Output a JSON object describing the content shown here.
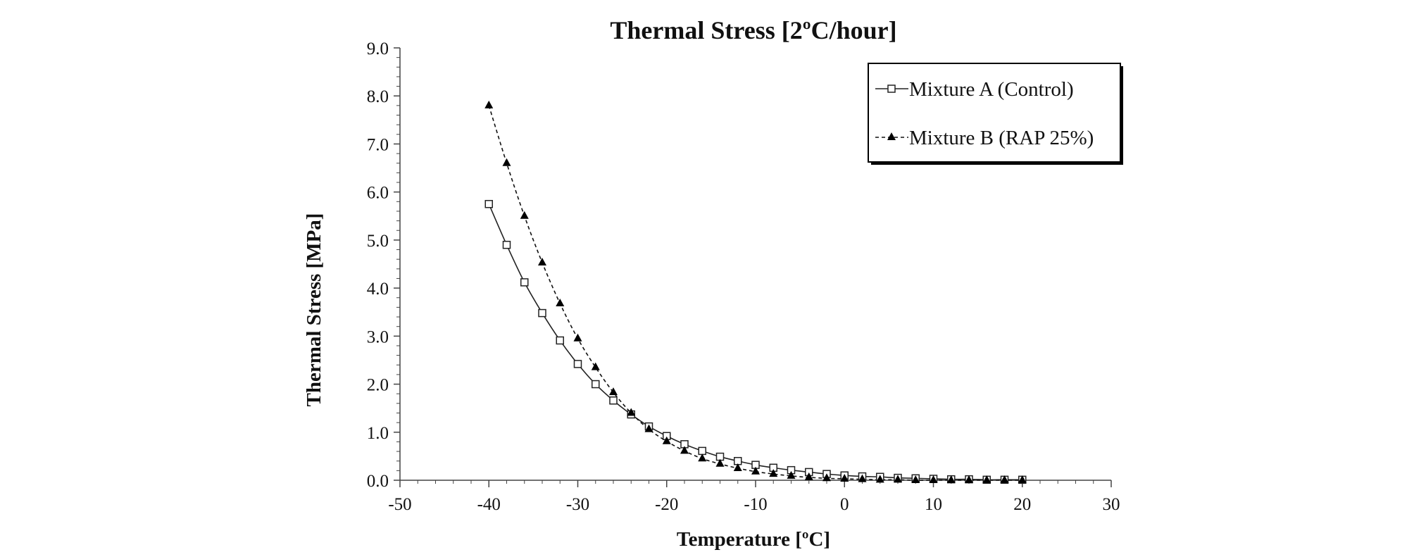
{
  "chart_data": {
    "type": "scatter",
    "title": "Thermal Stress [2ºC/hour]",
    "xlabel": "Temperature [ºC]",
    "ylabel": "Thermal Stress [MPa]",
    "xlim": [
      -50,
      30
    ],
    "ylim": [
      0,
      9
    ],
    "xticks": [
      -50,
      -40,
      -30,
      -20,
      -10,
      0,
      10,
      20,
      30
    ],
    "xtick_labels": [
      "-50",
      "-40",
      "-30",
      "-20",
      "-10",
      "0",
      "10",
      "20",
      "30"
    ],
    "yticks": [
      0,
      1,
      2,
      3,
      4,
      5,
      6,
      7,
      8,
      9
    ],
    "ytick_labels": [
      "0.0",
      "1.0",
      "2.0",
      "3.0",
      "4.0",
      "5.0",
      "6.0",
      "7.0",
      "8.0",
      "9.0"
    ],
    "grid": false,
    "legend_position": "top-right",
    "series": [
      {
        "name": "Mixture A (Control)",
        "marker": "open-square",
        "line": "solid",
        "color": "#222222",
        "x": [
          -40,
          -38,
          -36,
          -34,
          -32,
          -30,
          -28,
          -26,
          -24,
          -22,
          -20,
          -18,
          -16,
          -14,
          -12,
          -10,
          -8,
          -6,
          -4,
          -2,
          0,
          2,
          4,
          6,
          8,
          10,
          12,
          14,
          16,
          18,
          20
        ],
        "y": [
          5.75,
          4.9,
          4.12,
          3.48,
          2.91,
          2.42,
          2.0,
          1.66,
          1.37,
          1.12,
          0.92,
          0.75,
          0.61,
          0.49,
          0.4,
          0.32,
          0.26,
          0.21,
          0.17,
          0.13,
          0.1,
          0.08,
          0.07,
          0.05,
          0.04,
          0.03,
          0.02,
          0.02,
          0.01,
          0.01,
          0.01
        ]
      },
      {
        "name": "Mixture B (RAP 25%)",
        "marker": "filled-triangle",
        "line": "dashed",
        "color": "#111111",
        "x": [
          -40,
          -38,
          -36,
          -34,
          -32,
          -30,
          -28,
          -26,
          -24,
          -22,
          -20,
          -18,
          -16,
          -14,
          -12,
          -10,
          -8,
          -6,
          -4,
          -2,
          0,
          2,
          4,
          6,
          8,
          10,
          12,
          14,
          16,
          18,
          20
        ],
        "y": [
          7.8,
          6.6,
          5.5,
          4.53,
          3.68,
          2.95,
          2.35,
          1.83,
          1.4,
          1.06,
          0.81,
          0.61,
          0.45,
          0.34,
          0.25,
          0.18,
          0.13,
          0.09,
          0.06,
          0.04,
          0.03,
          0.02,
          0.01,
          0.01,
          0.0,
          0.0,
          0.0,
          0.0,
          0.0,
          0.0,
          0.0
        ]
      }
    ]
  }
}
